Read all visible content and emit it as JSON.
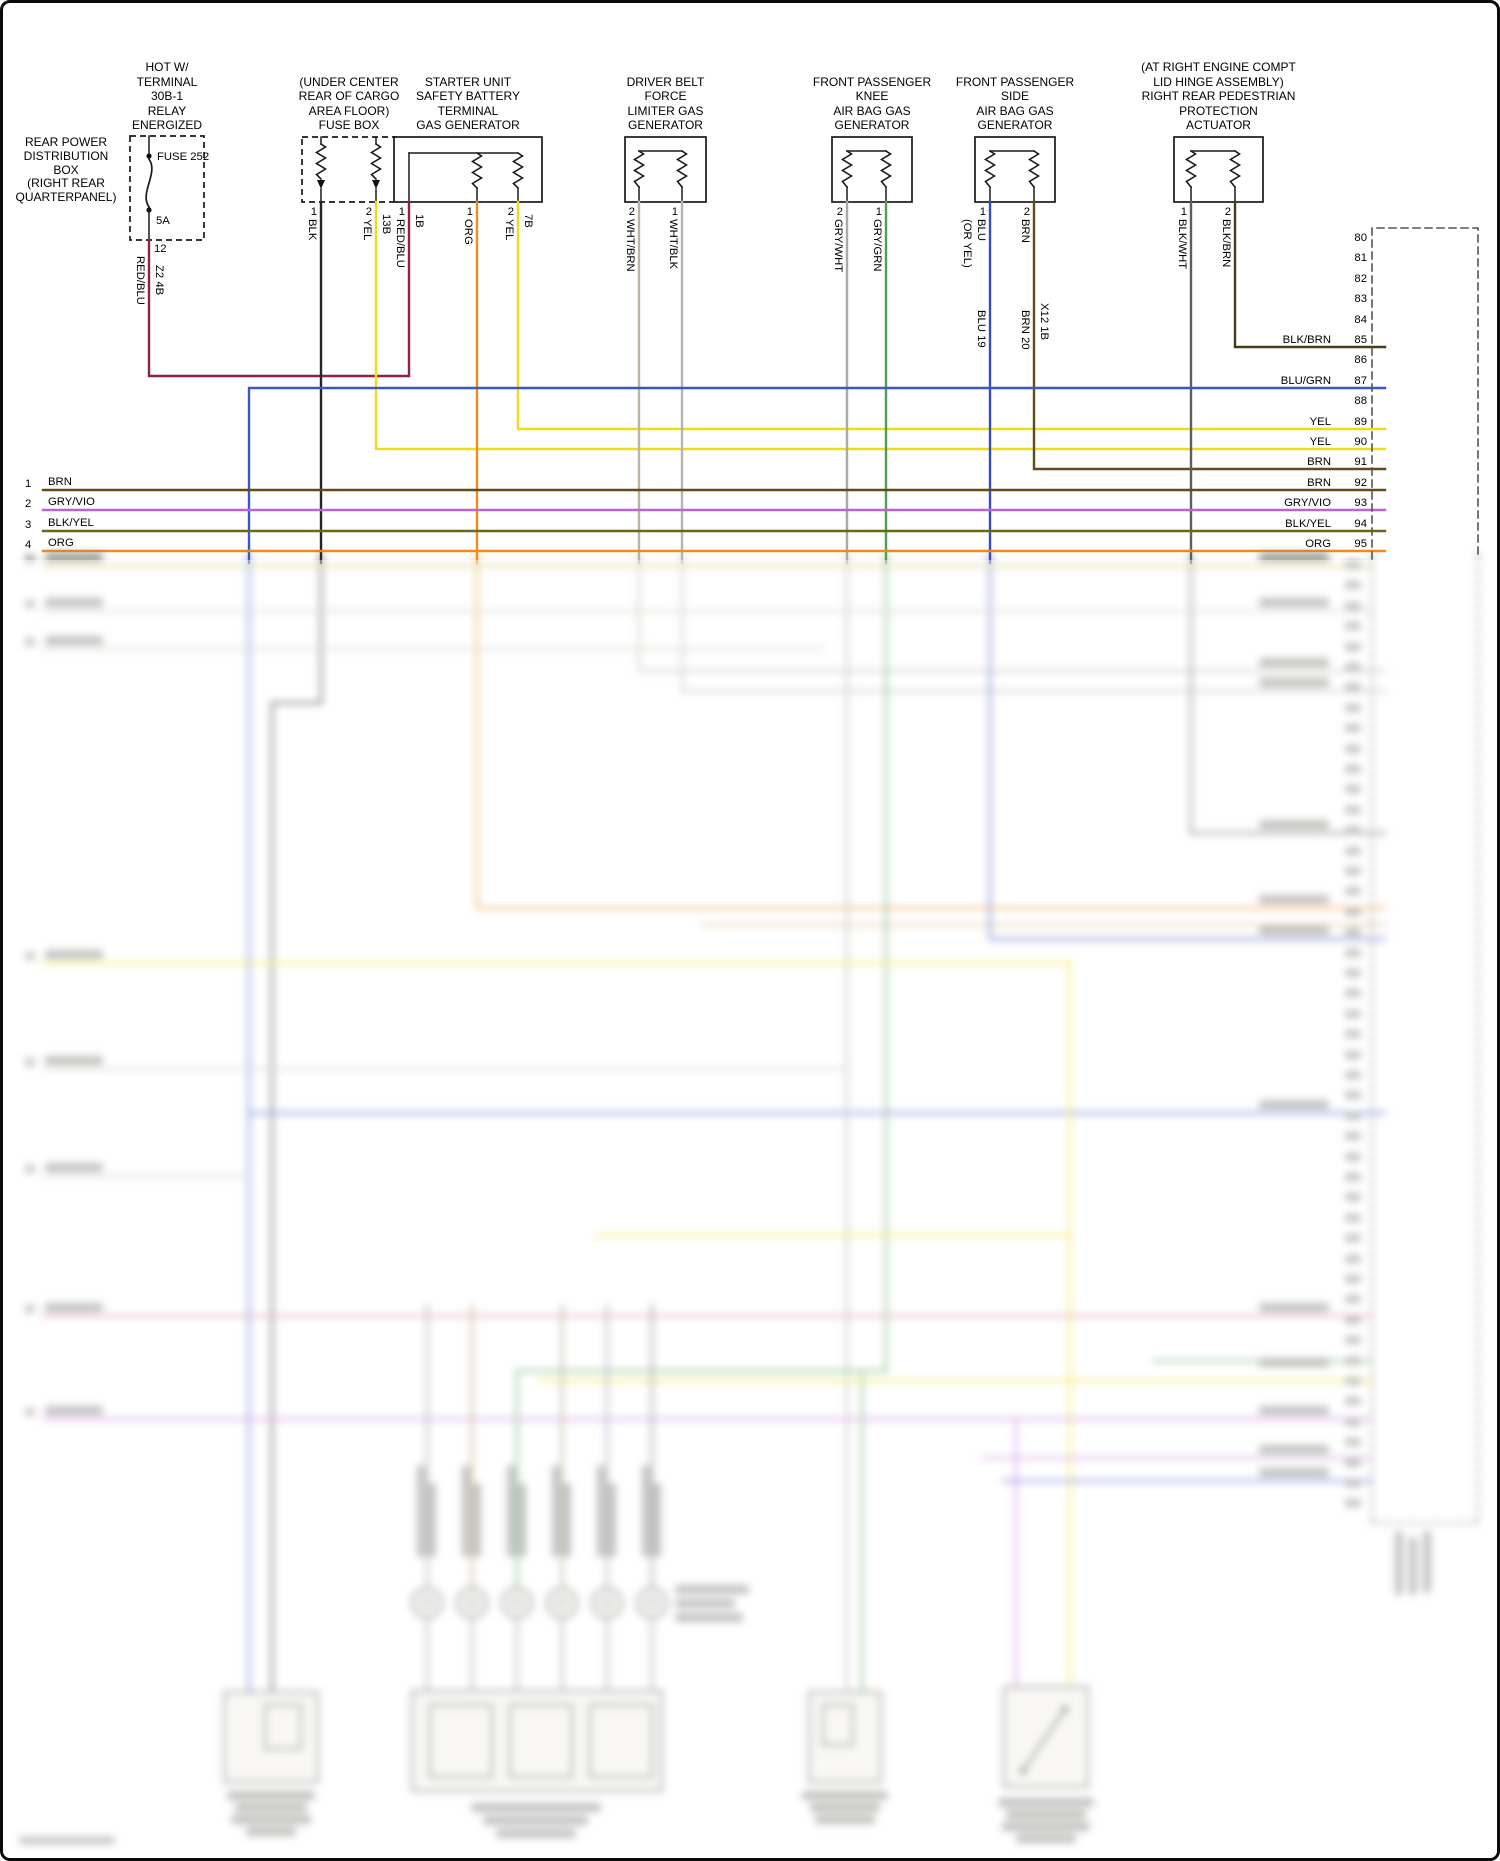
{
  "relay": {
    "feed_lines": [
      "HOT W/",
      "TERMINAL",
      "30B-1",
      "RELAY",
      "ENERGIZED"
    ],
    "box_lines": [
      "REAR POWER",
      "DISTRIBUTION",
      "BOX",
      "(RIGHT REAR",
      "QUARTERPANEL)"
    ],
    "fuse_name": "FUSE 252",
    "fuse_rating": "5A",
    "pin": "12",
    "wire": "RED/BLU",
    "circuit": "Z2 4B"
  },
  "components": [
    {
      "name": "cargo-floor-fuse-box",
      "caption": [
        "(UNDER CENTER",
        "REAR OF CARGO",
        "AREA FLOOR)",
        "FUSE BOX"
      ],
      "stubs": [
        {
          "pin": "1",
          "wire": "BLK"
        },
        {
          "pin": "2",
          "wire": "YEL",
          "tag": "13B"
        }
      ]
    },
    {
      "name": "starter-unit-safety-battery-terminal-gas-generator",
      "caption": [
        "STARTER UNIT",
        "SAFETY BATTERY",
        "TERMINAL",
        "GAS GENERATOR"
      ],
      "stubs": [
        {
          "pin": "1",
          "wire": "RED/BLU",
          "tag": "1B"
        },
        {
          "pin": "1",
          "wire": "ORG"
        },
        {
          "pin": "2",
          "wire": "YEL",
          "tag": "7B"
        }
      ]
    },
    {
      "name": "driver-belt-force-limiter-gas-generator",
      "caption": [
        "DRIVER BELT",
        "FORCE",
        "LIMITER GAS",
        "GENERATOR"
      ],
      "stubs": [
        {
          "pin": "2",
          "wire": "WHT/BRN"
        },
        {
          "pin": "1",
          "wire": "WHT/BLK"
        }
      ]
    },
    {
      "name": "front-passenger-knee-air-bag-gas-generator",
      "caption": [
        "FRONT PASSENGER",
        "KNEE",
        "AIR BAG GAS",
        "GENERATOR"
      ],
      "stubs": [
        {
          "pin": "2",
          "wire": "GRY/WHT"
        },
        {
          "pin": "1",
          "wire": "GRY/GRN"
        }
      ]
    },
    {
      "name": "front-passenger-side-air-bag-gas-generator",
      "caption": [
        "FRONT PASSENGER",
        "SIDE",
        "AIR BAG GAS",
        "GENERATOR"
      ],
      "stubs": [
        {
          "pin": "1",
          "wire": "BLU",
          "wire_alt": "(OR YEL)",
          "below": "BLU  19"
        },
        {
          "pin": "2",
          "wire": "BRN",
          "below": "BRN  20",
          "tag": "X12 1B"
        }
      ]
    },
    {
      "name": "right-rear-pedestrian-protection-actuator",
      "caption": [
        "(AT RIGHT ENGINE COMPT",
        "LID HINGE ASSEMBLY)",
        "RIGHT REAR PEDESTRIAN",
        "PROTECTION",
        "ACTUATOR"
      ],
      "stubs": [
        {
          "pin": "1",
          "wire": "BLK/WHT"
        },
        {
          "pin": "2",
          "wire": "BLK/BRN"
        }
      ]
    }
  ],
  "left_rows": [
    {
      "num": "1",
      "wire": "BRN"
    },
    {
      "num": "2",
      "wire": "GRY/VIO"
    },
    {
      "num": "3",
      "wire": "BLK/YEL"
    },
    {
      "num": "4",
      "wire": "ORG"
    }
  ],
  "connector": {
    "rows": [
      {
        "pin": "80",
        "wire": ""
      },
      {
        "pin": "81",
        "wire": ""
      },
      {
        "pin": "82",
        "wire": ""
      },
      {
        "pin": "83",
        "wire": ""
      },
      {
        "pin": "84",
        "wire": ""
      },
      {
        "pin": "85",
        "wire": "BLK/BRN"
      },
      {
        "pin": "86",
        "wire": ""
      },
      {
        "pin": "87",
        "wire": "BLU/GRN"
      },
      {
        "pin": "88",
        "wire": ""
      },
      {
        "pin": "89",
        "wire": "YEL"
      },
      {
        "pin": "90",
        "wire": "YEL"
      },
      {
        "pin": "91",
        "wire": "BRN"
      },
      {
        "pin": "92",
        "wire": "BRN"
      },
      {
        "pin": "93",
        "wire": "GRY/VIO"
      },
      {
        "pin": "94",
        "wire": "BLK/YEL"
      },
      {
        "pin": "95",
        "wire": "ORG"
      }
    ]
  },
  "colors": {
    "red_blu": "#8e2244",
    "blk": "#26241f",
    "yel": "#efdc16",
    "org": "#ee8c1e",
    "wht_brn": "#bdb3a5",
    "wht_blk": "#b5b5b2",
    "gry_wht": "#a9a9a5",
    "gry_grn": "#4d9f55",
    "blu": "#3a4cbc",
    "blu_grn": "#3a57c4",
    "brn": "#604d12",
    "blk_brn": "#463b1a",
    "gry_vio": "#ba64d4",
    "blk_yel": "#6b6718",
    "blk_wht": "#5e5e5c",
    "pink": "#e07a92",
    "violet": "#c473de",
    "tan": "#cabb55",
    "deco_gray": "#c6c3ba",
    "deco_tan": "#d7a870"
  }
}
